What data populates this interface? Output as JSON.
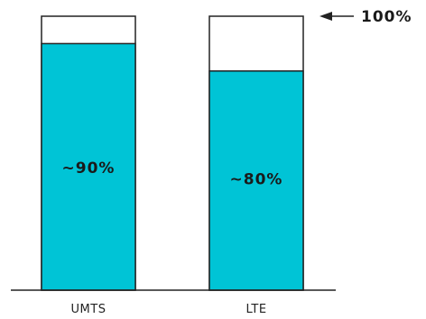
{
  "chart_data": {
    "type": "bar",
    "stacked_to_total": true,
    "categories": [
      "UMTS",
      "LTE"
    ],
    "values": [
      90,
      80
    ],
    "total": 100,
    "value_labels": [
      "~90%",
      "~80%"
    ],
    "reference_label": "100%",
    "ylim": [
      0,
      100
    ],
    "grid": false,
    "legend": "none",
    "colors": {
      "fill": "#00c4d6",
      "remainder": "#ffffff",
      "outline": "#222222",
      "axis": "#222222",
      "text": "#1a1a1a"
    }
  }
}
